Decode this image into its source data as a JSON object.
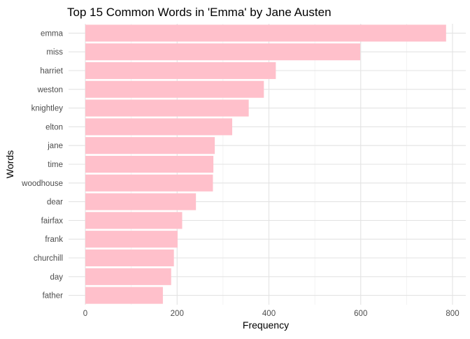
{
  "chart_data": {
    "type": "bar",
    "orientation": "horizontal",
    "title": "Top 15 Common Words in 'Emma' by Jane Austen",
    "xlabel": "Frequency",
    "ylabel": "Words",
    "categories": [
      "emma",
      "miss",
      "harriet",
      "weston",
      "knightley",
      "elton",
      "jane",
      "time",
      "woodhouse",
      "dear",
      "fairfax",
      "frank",
      "churchill",
      "day",
      "father"
    ],
    "values": [
      786,
      599,
      415,
      389,
      356,
      320,
      282,
      279,
      278,
      241,
      211,
      201,
      193,
      187,
      169
    ],
    "xlim": [
      0,
      820
    ],
    "xticks": [
      0,
      200,
      400,
      600,
      800
    ],
    "grid": true,
    "legend": "none",
    "bar_color": "#ffc0cb"
  }
}
